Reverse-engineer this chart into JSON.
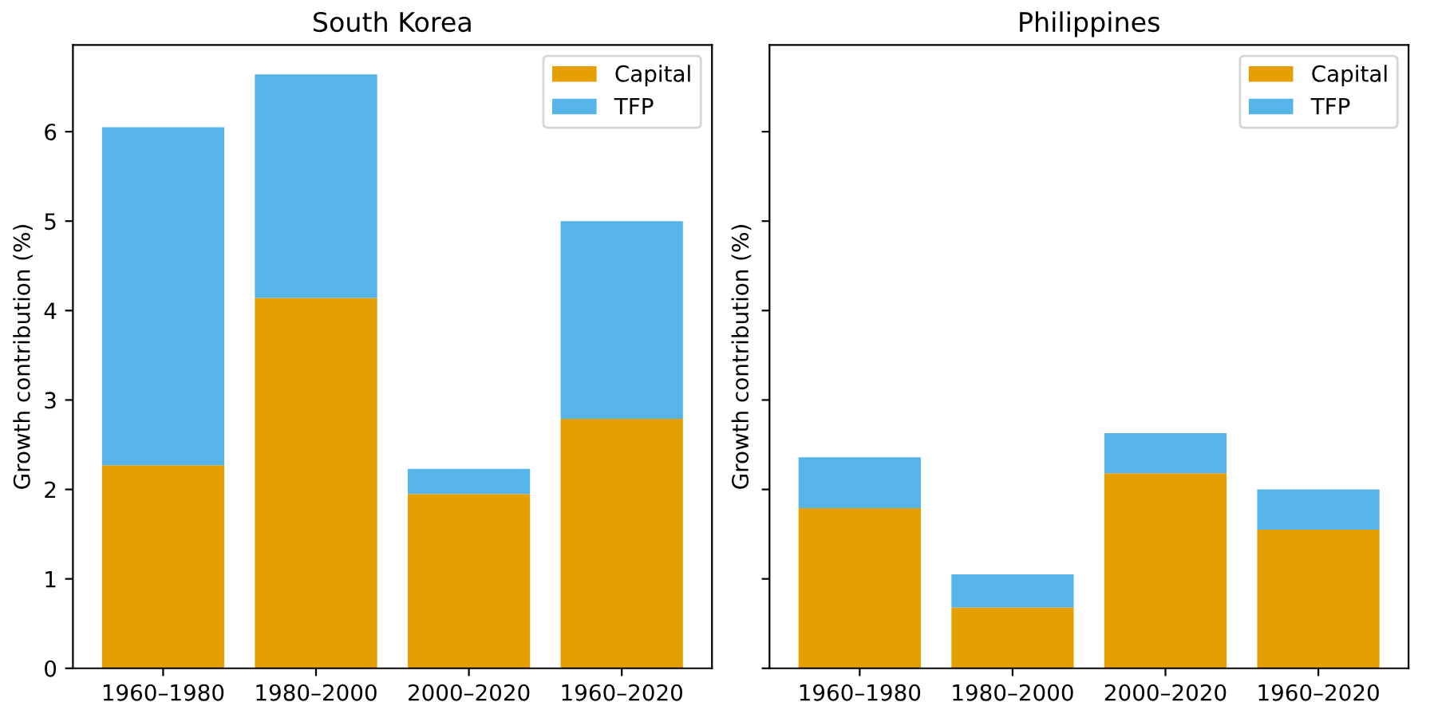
{
  "chart_data": [
    {
      "type": "bar",
      "title": "South Korea",
      "ylabel": "Growth contribution (%)",
      "categories": [
        "1960–1980",
        "1980–2000",
        "2000–2020",
        "1960–2020"
      ],
      "stacked": true,
      "series": [
        {
          "name": "Capital",
          "color": "#e69f00",
          "values": [
            2.27,
            4.14,
            1.95,
            2.79
          ]
        },
        {
          "name": "TFP",
          "color": "#56b4e9",
          "values": [
            3.78,
            2.5,
            0.28,
            2.21
          ]
        }
      ],
      "ylim": [
        0,
        6.97
      ],
      "yticks": [
        0,
        1,
        2,
        3,
        4,
        5,
        6
      ],
      "legend": "top right"
    },
    {
      "type": "bar",
      "title": "Philippines",
      "ylabel": "Growth contribution (%)",
      "categories": [
        "1960–1980",
        "1980–2000",
        "2000–2020",
        "1960–2020"
      ],
      "stacked": true,
      "series": [
        {
          "name": "Capital",
          "color": "#e69f00",
          "values": [
            1.79,
            0.68,
            2.18,
            1.55
          ]
        },
        {
          "name": "TFP",
          "color": "#56b4e9",
          "values": [
            0.57,
            0.37,
            0.45,
            0.45
          ]
        }
      ],
      "ylim": [
        0,
        6.97
      ],
      "yticks": [
        0,
        1,
        2,
        3,
        4,
        5,
        6
      ],
      "legend": "top right",
      "tick_labels": "x"
    }
  ]
}
